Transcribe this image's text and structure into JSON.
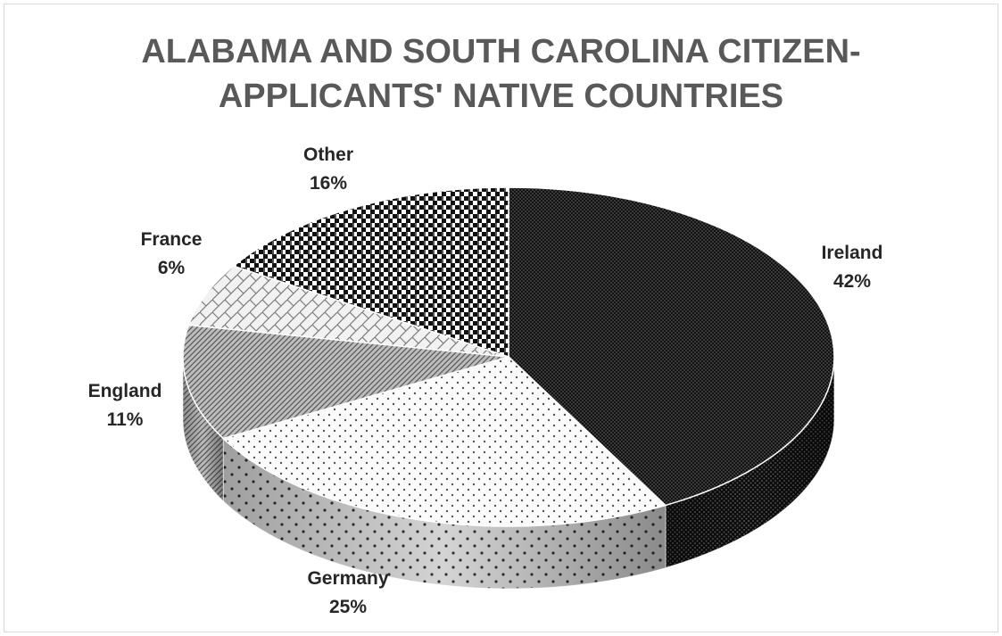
{
  "chart_data": {
    "type": "pie",
    "title_lines": [
      "ALABAMA AND SOUTH CAROLINA CITIZEN-",
      "APPLICANTS' NATIVE COUNTRIES"
    ],
    "slices": [
      {
        "name": "Ireland",
        "value": 42,
        "label": "42%",
        "pattern": "dense-dots-dark"
      },
      {
        "name": "Germany",
        "value": 25,
        "label": "25%",
        "pattern": "sparse-dots-light"
      },
      {
        "name": "England",
        "value": 11,
        "label": "11%",
        "pattern": "diagonal-gray"
      },
      {
        "name": "France",
        "value": 6,
        "label": "6%",
        "pattern": "brick-light"
      },
      {
        "name": "Other",
        "value": 16,
        "label": "16%",
        "pattern": "checker-dark"
      }
    ],
    "style": "3d-pie",
    "legend": "none"
  }
}
